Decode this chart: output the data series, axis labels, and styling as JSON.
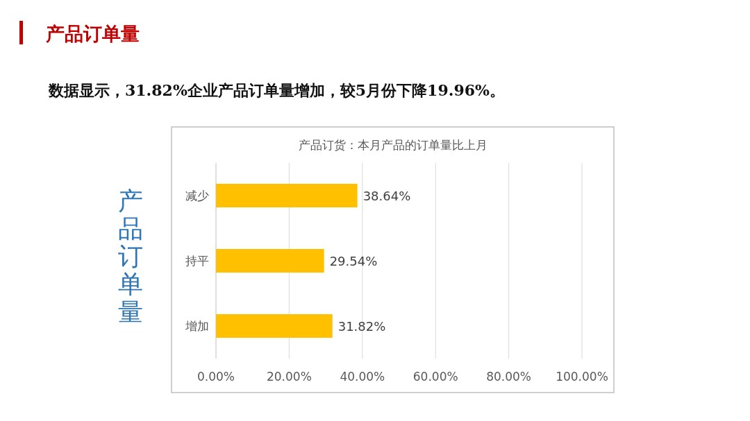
{
  "chart_data": {
    "type": "bar",
    "orientation": "horizontal",
    "title": "产品订货：本月产品的订单量比上月",
    "ylabel": "产品订单量",
    "annotations": [
      "产品订单量",
      "数据显示，31.82%企业产品订单量增加，较5月份下降19.96%。"
    ],
    "categories": [
      "减少",
      "持平",
      "增加"
    ],
    "values": [
      38.64,
      29.54,
      31.82
    ],
    "value_labels": [
      "38.64%",
      "29.54%",
      "31.82%"
    ],
    "color": "#ffc000",
    "xlim": [
      0,
      100
    ],
    "xticks": [
      {
        "value": 0,
        "label": "0.00%"
      },
      {
        "value": 20,
        "label": "20.00%"
      },
      {
        "value": 40,
        "label": "40.00%"
      },
      {
        "value": 60,
        "label": "60.00%"
      },
      {
        "value": 80,
        "label": "80.00%"
      },
      {
        "value": 100,
        "label": "100.00%"
      }
    ],
    "grid": "x"
  }
}
